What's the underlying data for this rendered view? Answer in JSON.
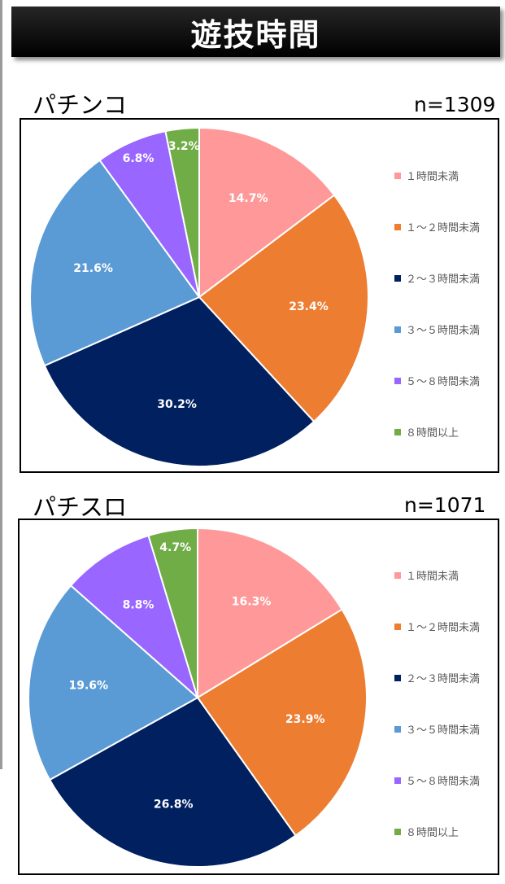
{
  "header": {
    "title": "遊技時間"
  },
  "legend_labels": [
    "１時間未満",
    "１～２時間未満",
    "２～３時間未満",
    "３～５時間未満",
    "５～８時間未満",
    "８時間以上"
  ],
  "colors": [
    "#ff9999",
    "#ed7d31",
    "#002060",
    "#5b9bd5",
    "#9966ff",
    "#70ad47"
  ],
  "pachinko": {
    "label": "パチンコ",
    "n": "n=1309"
  },
  "pachislot": {
    "label": "パチスロ",
    "n": "n=1071"
  },
  "chart_data": [
    {
      "type": "pie",
      "title": "パチンコ",
      "annotation": "n=1309",
      "categories": [
        "１時間未満",
        "１～２時間未満",
        "２～３時間未満",
        "３～５時間未満",
        "５～８時間未満",
        "８時間以上"
      ],
      "values": [
        14.7,
        23.4,
        30.2,
        21.6,
        6.8,
        3.2
      ],
      "value_labels": [
        "14.7%",
        "23.4%",
        "30.2%",
        "21.6%",
        "6.8%",
        "3.2%"
      ],
      "legend": "right"
    },
    {
      "type": "pie",
      "title": "パチスロ",
      "annotation": "n=1071",
      "categories": [
        "１時間未満",
        "１～２時間未満",
        "２～３時間未満",
        "３～５時間未満",
        "５～８時間未満",
        "８時間以上"
      ],
      "values": [
        16.3,
        23.9,
        26.8,
        19.6,
        8.8,
        4.7
      ],
      "value_labels": [
        "16.3%",
        "23.9%",
        "26.8%",
        "19.6%",
        "8.8%",
        "4.7%"
      ],
      "legend": "right"
    }
  ]
}
